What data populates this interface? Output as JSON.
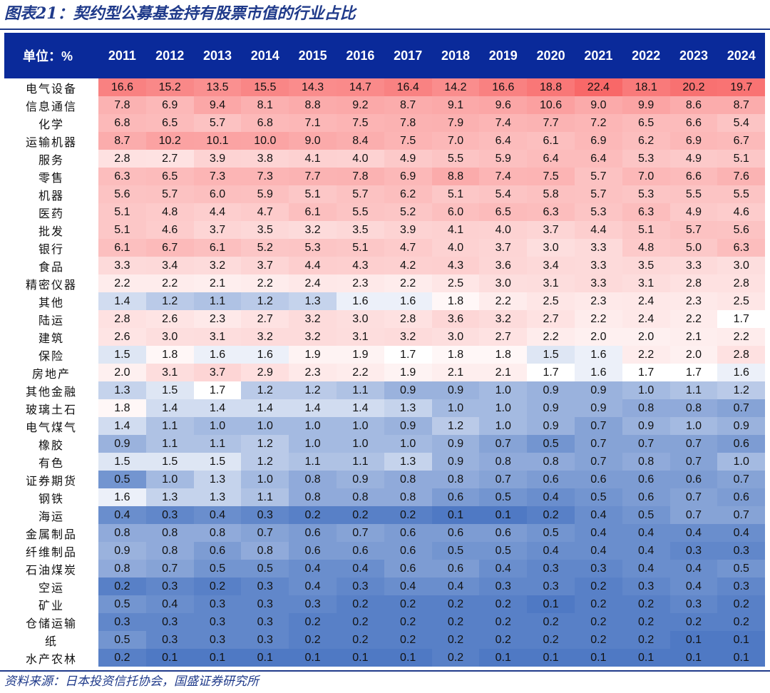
{
  "title": "图表21：契约型公募基金持有股票市值的行业占比",
  "source": "资料来源：日本投资信托协会，国盛证券研究所",
  "chart_data": {
    "type": "heatmap",
    "title": "图表21：契约型公募基金持有股票市值的行业占比",
    "corner_label": "单位：%",
    "columns": [
      "2011",
      "2012",
      "2013",
      "2014",
      "2015",
      "2016",
      "2017",
      "2018",
      "2019",
      "2020",
      "2021",
      "2022",
      "2023",
      "2024"
    ],
    "rows": [
      {
        "label": "电气设备",
        "values": [
          "16.6",
          "15.2",
          "13.5",
          "15.5",
          "14.3",
          "14.7",
          "16.4",
          "14.2",
          "16.6",
          "18.8",
          "22.4",
          "18.1",
          "20.2",
          "19.7"
        ]
      },
      {
        "label": "信息通信",
        "values": [
          "7.8",
          "6.9",
          "9.4",
          "8.1",
          "8.8",
          "9.2",
          "8.7",
          "9.1",
          "9.6",
          "10.6",
          "9.0",
          "9.9",
          "8.6",
          "8.7"
        ]
      },
      {
        "label": "化学",
        "values": [
          "6.8",
          "6.5",
          "5.7",
          "6.8",
          "7.1",
          "7.5",
          "7.8",
          "7.9",
          "7.4",
          "7.7",
          "7.2",
          "6.5",
          "6.6",
          "5.4"
        ]
      },
      {
        "label": "运输机器",
        "values": [
          "8.7",
          "10.2",
          "10.1",
          "10.0",
          "9.0",
          "8.4",
          "7.5",
          "7.0",
          "6.4",
          "6.1",
          "6.9",
          "6.2",
          "6.9",
          "6.7"
        ]
      },
      {
        "label": "服务",
        "values": [
          "2.8",
          "2.7",
          "3.9",
          "3.8",
          "4.1",
          "4.0",
          "4.9",
          "5.5",
          "5.9",
          "6.4",
          "6.4",
          "5.3",
          "4.9",
          "5.1"
        ]
      },
      {
        "label": "零售",
        "values": [
          "6.3",
          "6.5",
          "7.3",
          "7.3",
          "7.7",
          "7.8",
          "6.9",
          "8.8",
          "7.4",
          "7.5",
          "5.7",
          "7.0",
          "6.6",
          "7.6"
        ]
      },
      {
        "label": "机器",
        "values": [
          "5.6",
          "5.7",
          "6.0",
          "5.9",
          "5.1",
          "5.7",
          "6.2",
          "5.1",
          "5.4",
          "5.8",
          "5.7",
          "5.3",
          "5.5",
          "5.5"
        ]
      },
      {
        "label": "医药",
        "values": [
          "5.1",
          "4.8",
          "4.4",
          "4.7",
          "6.1",
          "5.5",
          "5.2",
          "6.0",
          "6.5",
          "6.3",
          "5.3",
          "6.3",
          "4.9",
          "4.6"
        ]
      },
      {
        "label": "批发",
        "values": [
          "5.1",
          "4.6",
          "3.7",
          "3.5",
          "3.2",
          "3.5",
          "3.9",
          "4.1",
          "4.0",
          "3.7",
          "4.4",
          "5.1",
          "5.7",
          "5.6"
        ]
      },
      {
        "label": "银行",
        "values": [
          "6.1",
          "6.7",
          "6.1",
          "5.2",
          "5.3",
          "5.1",
          "4.7",
          "4.0",
          "3.7",
          "3.0",
          "3.3",
          "4.8",
          "5.0",
          "6.3"
        ]
      },
      {
        "label": "食品",
        "values": [
          "3.3",
          "3.4",
          "3.2",
          "3.7",
          "4.4",
          "4.3",
          "4.2",
          "4.3",
          "3.6",
          "3.4",
          "3.3",
          "3.5",
          "3.3",
          "3.0"
        ]
      },
      {
        "label": "精密仪器",
        "values": [
          "2.2",
          "2.2",
          "2.1",
          "2.2",
          "2.4",
          "2.3",
          "2.2",
          "2.5",
          "3.0",
          "3.1",
          "3.3",
          "3.1",
          "2.8",
          "2.8"
        ]
      },
      {
        "label": "其他",
        "values": [
          "1.4",
          "1.2",
          "1.1",
          "1.2",
          "1.3",
          "1.6",
          "1.6",
          "1.8",
          "2.2",
          "2.5",
          "2.3",
          "2.4",
          "2.3",
          "2.5"
        ]
      },
      {
        "label": "陆运",
        "values": [
          "2.8",
          "2.6",
          "2.3",
          "2.7",
          "3.2",
          "3.0",
          "2.8",
          "3.6",
          "3.2",
          "2.7",
          "2.2",
          "2.4",
          "2.2",
          "1.7"
        ]
      },
      {
        "label": "建筑",
        "values": [
          "2.6",
          "3.0",
          "3.1",
          "3.2",
          "3.2",
          "3.1",
          "3.2",
          "3.0",
          "2.7",
          "2.2",
          "2.0",
          "2.0",
          "2.1",
          "2.2"
        ]
      },
      {
        "label": "保险",
        "values": [
          "1.5",
          "1.8",
          "1.6",
          "1.6",
          "1.9",
          "1.9",
          "1.7",
          "1.8",
          "1.8",
          "1.5",
          "1.6",
          "2.2",
          "2.0",
          "2.8"
        ]
      },
      {
        "label": "房地产",
        "values": [
          "2.0",
          "3.1",
          "3.7",
          "2.9",
          "2.3",
          "2.2",
          "1.9",
          "2.1",
          "2.1",
          "1.7",
          "1.6",
          "1.7",
          "1.7",
          "1.6"
        ]
      },
      {
        "label": "其他金融",
        "values": [
          "1.3",
          "1.5",
          "1.7",
          "1.2",
          "1.2",
          "1.1",
          "0.9",
          "0.9",
          "1.0",
          "0.9",
          "0.9",
          "1.0",
          "1.1",
          "1.2"
        ]
      },
      {
        "label": "玻璃土石",
        "values": [
          "1.8",
          "1.4",
          "1.4",
          "1.4",
          "1.4",
          "1.4",
          "1.3",
          "1.0",
          "1.0",
          "0.9",
          "0.9",
          "0.8",
          "0.8",
          "0.7"
        ]
      },
      {
        "label": "电气煤气",
        "values": [
          "1.4",
          "1.1",
          "1.0",
          "1.0",
          "1.0",
          "1.0",
          "0.9",
          "1.2",
          "1.0",
          "0.9",
          "0.7",
          "0.9",
          "1.0",
          "0.9"
        ]
      },
      {
        "label": "橡胶",
        "values": [
          "0.9",
          "1.1",
          "1.1",
          "1.2",
          "1.0",
          "1.0",
          "1.0",
          "0.9",
          "0.7",
          "0.5",
          "0.7",
          "0.7",
          "0.7",
          "0.6"
        ]
      },
      {
        "label": "有色",
        "values": [
          "1.5",
          "1.5",
          "1.5",
          "1.2",
          "1.1",
          "1.1",
          "1.3",
          "0.9",
          "0.8",
          "0.8",
          "0.7",
          "0.8",
          "0.7",
          "1.0"
        ]
      },
      {
        "label": "证券期货",
        "values": [
          "0.5",
          "1.0",
          "1.3",
          "1.0",
          "0.8",
          "0.9",
          "0.8",
          "0.8",
          "0.7",
          "0.6",
          "0.6",
          "0.6",
          "0.6",
          "0.7"
        ]
      },
      {
        "label": "钢铁",
        "values": [
          "1.6",
          "1.3",
          "1.3",
          "1.1",
          "0.8",
          "0.8",
          "0.8",
          "0.6",
          "0.5",
          "0.4",
          "0.5",
          "0.6",
          "0.7",
          "0.6"
        ]
      },
      {
        "label": "海运",
        "values": [
          "0.4",
          "0.3",
          "0.4",
          "0.3",
          "0.2",
          "0.2",
          "0.2",
          "0.1",
          "0.1",
          "0.2",
          "0.4",
          "0.5",
          "0.7",
          "0.7"
        ]
      },
      {
        "label": "金属制品",
        "values": [
          "0.8",
          "0.8",
          "0.8",
          "0.7",
          "0.6",
          "0.7",
          "0.6",
          "0.6",
          "0.6",
          "0.5",
          "0.4",
          "0.4",
          "0.4",
          "0.4"
        ]
      },
      {
        "label": "纤维制品",
        "values": [
          "0.9",
          "0.8",
          "0.6",
          "0.8",
          "0.6",
          "0.6",
          "0.6",
          "0.5",
          "0.5",
          "0.4",
          "0.4",
          "0.4",
          "0.3",
          "0.3"
        ]
      },
      {
        "label": "石油煤炭",
        "values": [
          "0.8",
          "0.7",
          "0.5",
          "0.5",
          "0.4",
          "0.4",
          "0.6",
          "0.6",
          "0.4",
          "0.3",
          "0.3",
          "0.4",
          "0.4",
          "0.5"
        ]
      },
      {
        "label": "空运",
        "values": [
          "0.2",
          "0.3",
          "0.2",
          "0.3",
          "0.4",
          "0.3",
          "0.4",
          "0.4",
          "0.3",
          "0.3",
          "0.2",
          "0.3",
          "0.4",
          "0.3"
        ]
      },
      {
        "label": "矿业",
        "values": [
          "0.5",
          "0.4",
          "0.3",
          "0.3",
          "0.3",
          "0.2",
          "0.2",
          "0.2",
          "0.2",
          "0.1",
          "0.2",
          "0.2",
          "0.3",
          "0.2"
        ]
      },
      {
        "label": "仓储运输",
        "values": [
          "0.3",
          "0.3",
          "0.3",
          "0.3",
          "0.2",
          "0.2",
          "0.2",
          "0.2",
          "0.2",
          "0.2",
          "0.2",
          "0.2",
          "0.2",
          "0.2"
        ]
      },
      {
        "label": "纸",
        "values": [
          "0.5",
          "0.3",
          "0.3",
          "0.3",
          "0.2",
          "0.2",
          "0.2",
          "0.2",
          "0.2",
          "0.2",
          "0.2",
          "0.2",
          "0.1",
          "0.1"
        ]
      },
      {
        "label": "水产农林",
        "values": [
          "0.2",
          "0.1",
          "0.1",
          "0.1",
          "0.1",
          "0.1",
          "0.1",
          "0.2",
          "0.1",
          "0.1",
          "0.1",
          "0.1",
          "0.1",
          "0.1"
        ]
      }
    ],
    "color_scale": {
      "low": "#4f79c4",
      "mid": "#ffffff",
      "high": "#f86868",
      "mid_value": 1.7,
      "high_value": 22.4,
      "low_value": 0.1
    }
  }
}
